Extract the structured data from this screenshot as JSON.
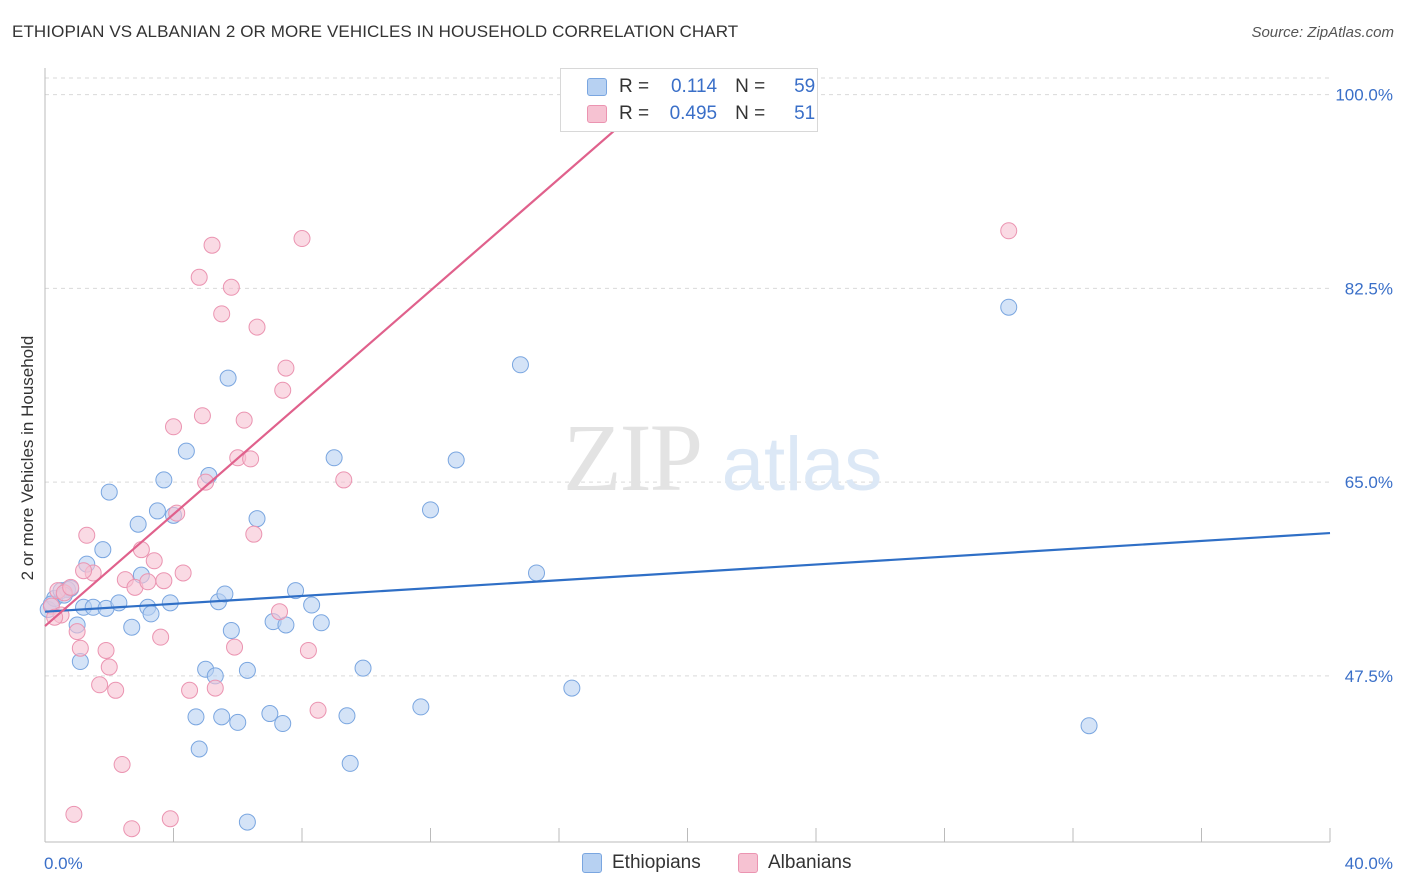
{
  "header": {
    "title": "ETHIOPIAN VS ALBANIAN 2 OR MORE VEHICLES IN HOUSEHOLD CORRELATION CHART",
    "source": "Source: ZipAtlas.com"
  },
  "watermark": {
    "zip": "ZIP",
    "atlas": "atlas"
  },
  "legend_stats": [
    {
      "r_label": "R =",
      "r_value": "0.114",
      "n_label": "N =",
      "n_value": "59"
    },
    {
      "r_label": "R =",
      "r_value": "0.495",
      "n_label": "N =",
      "n_value": "51"
    }
  ],
  "colors": {
    "ethiopians_fill": "#b7d1f2",
    "ethiopians_stroke": "#7aa6e0",
    "ethiopians_line": "#2f6fc6",
    "albanians_fill": "#f6c2d2",
    "albanians_stroke": "#eb94b1",
    "albanians_line": "#e0618c",
    "axis_label": "#3a6fc8",
    "grid": "#d9d9d9"
  },
  "chart_data": {
    "type": "scatter",
    "title": "ETHIOPIAN VS ALBANIAN 2 OR MORE VEHICLES IN HOUSEHOLD CORRELATION CHART",
    "xlabel": "",
    "ylabel": "2 or more Vehicles in Household",
    "xlim": [
      0,
      40
    ],
    "ylim": [
      32.5,
      101.5
    ],
    "x_tick_labels": [
      "0.0%",
      "40.0%"
    ],
    "y_ticks": [
      47.5,
      65.0,
      82.5,
      100.0
    ],
    "y_tick_labels": [
      "47.5%",
      "65.0%",
      "82.5%",
      "100.0%"
    ],
    "legend_position": "bottom-center",
    "series": [
      {
        "name": "Ethiopians",
        "R": 0.114,
        "N": 59,
        "trend": {
          "x": [
            0,
            40
          ],
          "y": [
            53.3,
            60.4
          ]
        },
        "points": [
          [
            0.1,
            53.5
          ],
          [
            0.3,
            54.5
          ],
          [
            0.5,
            55.2
          ],
          [
            0.7,
            55.3
          ],
          [
            0.8,
            55.4
          ],
          [
            0.6,
            54.8
          ],
          [
            1.0,
            52.1
          ],
          [
            1.1,
            48.8
          ],
          [
            1.2,
            53.7
          ],
          [
            1.3,
            57.6
          ],
          [
            1.5,
            53.7
          ],
          [
            1.8,
            58.9
          ],
          [
            1.9,
            53.6
          ],
          [
            2.0,
            64.1
          ],
          [
            2.3,
            54.1
          ],
          [
            2.7,
            51.9
          ],
          [
            2.9,
            61.2
          ],
          [
            3.0,
            56.6
          ],
          [
            3.2,
            53.7
          ],
          [
            3.3,
            53.1
          ],
          [
            3.5,
            62.4
          ],
          [
            3.7,
            65.2
          ],
          [
            3.9,
            54.1
          ],
          [
            4.0,
            62.0
          ],
          [
            4.4,
            67.8
          ],
          [
            4.7,
            43.8
          ],
          [
            4.8,
            40.9
          ],
          [
            5.0,
            48.1
          ],
          [
            5.1,
            65.6
          ],
          [
            5.3,
            47.5
          ],
          [
            5.4,
            54.2
          ],
          [
            5.5,
            43.8
          ],
          [
            5.6,
            54.9
          ],
          [
            5.7,
            74.4
          ],
          [
            5.8,
            51.6
          ],
          [
            6.0,
            43.3
          ],
          [
            6.3,
            48.0
          ],
          [
            6.6,
            61.7
          ],
          [
            7.0,
            44.1
          ],
          [
            7.1,
            52.4
          ],
          [
            7.4,
            43.2
          ],
          [
            7.5,
            52.1
          ],
          [
            7.8,
            55.2
          ],
          [
            8.3,
            53.9
          ],
          [
            8.6,
            52.3
          ],
          [
            9.0,
            67.2
          ],
          [
            9.4,
            43.9
          ],
          [
            9.5,
            39.6
          ],
          [
            9.9,
            48.2
          ],
          [
            11.7,
            44.7
          ],
          [
            12.0,
            62.5
          ],
          [
            12.8,
            67.0
          ],
          [
            14.8,
            75.6
          ],
          [
            15.3,
            56.8
          ],
          [
            16.4,
            46.4
          ],
          [
            6.3,
            34.3
          ],
          [
            30.0,
            80.8
          ],
          [
            32.5,
            43.0
          ],
          [
            0.2,
            54.0
          ]
        ]
      },
      {
        "name": "Albanians",
        "R": 0.495,
        "N": 51,
        "trend": {
          "x": [
            0,
            40
          ],
          "y": [
            52.0,
            153.0
          ]
        },
        "points": [
          [
            0.2,
            53.8
          ],
          [
            0.4,
            55.2
          ],
          [
            0.6,
            55.0
          ],
          [
            0.8,
            55.5
          ],
          [
            1.0,
            51.5
          ],
          [
            1.1,
            50.0
          ],
          [
            1.3,
            60.2
          ],
          [
            1.5,
            56.8
          ],
          [
            1.7,
            46.7
          ],
          [
            1.9,
            49.8
          ],
          [
            2.0,
            48.3
          ],
          [
            2.2,
            46.2
          ],
          [
            2.4,
            39.5
          ],
          [
            2.5,
            56.2
          ],
          [
            2.7,
            33.7
          ],
          [
            2.8,
            55.5
          ],
          [
            3.0,
            58.9
          ],
          [
            3.2,
            56.0
          ],
          [
            3.4,
            57.9
          ],
          [
            3.6,
            51.0
          ],
          [
            3.7,
            56.1
          ],
          [
            3.9,
            34.6
          ],
          [
            4.0,
            70.0
          ],
          [
            4.1,
            62.2
          ],
          [
            4.3,
            56.8
          ],
          [
            4.5,
            46.2
          ],
          [
            4.8,
            83.5
          ],
          [
            4.9,
            71.0
          ],
          [
            5.0,
            65.0
          ],
          [
            5.2,
            86.4
          ],
          [
            5.3,
            46.4
          ],
          [
            5.5,
            80.2
          ],
          [
            5.8,
            82.6
          ],
          [
            5.9,
            50.1
          ],
          [
            6.0,
            67.2
          ],
          [
            6.2,
            70.6
          ],
          [
            6.4,
            67.1
          ],
          [
            6.5,
            60.3
          ],
          [
            6.6,
            79.0
          ],
          [
            7.3,
            53.3
          ],
          [
            7.4,
            73.3
          ],
          [
            7.5,
            75.3
          ],
          [
            8.0,
            87.0
          ],
          [
            8.2,
            49.8
          ],
          [
            8.5,
            44.4
          ],
          [
            9.3,
            65.2
          ],
          [
            0.9,
            35.0
          ],
          [
            0.5,
            53.0
          ],
          [
            1.2,
            57.0
          ],
          [
            30.0,
            87.7
          ],
          [
            0.3,
            52.8
          ]
        ]
      }
    ]
  }
}
